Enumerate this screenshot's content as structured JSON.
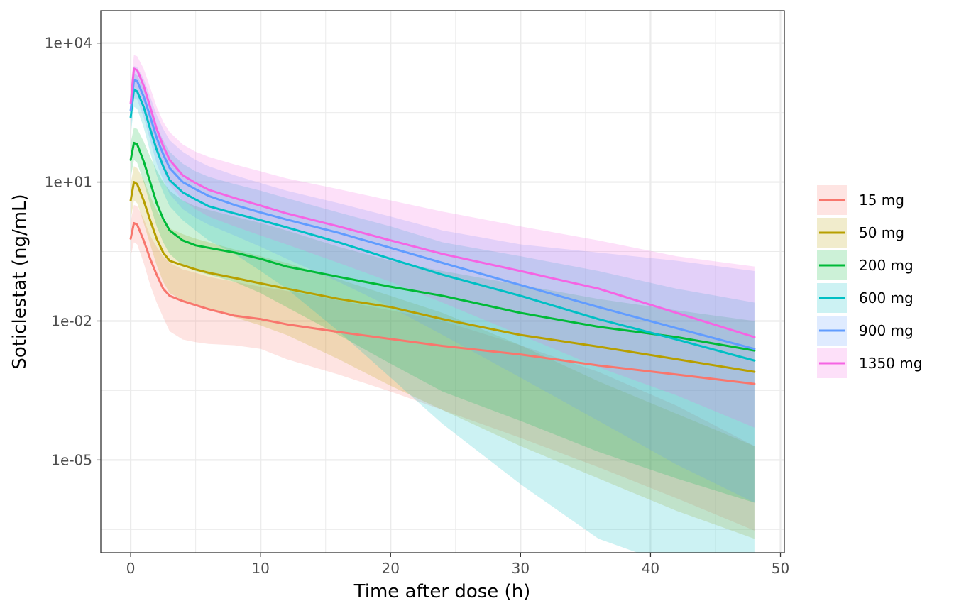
{
  "chart_data": {
    "type": "line",
    "xlabel": "Time after dose (h)",
    "ylabel": "Soticlestat (ng/mL)",
    "x_scale": "linear",
    "y_scale": "log10",
    "xlim": [
      -2.3,
      50.3
    ],
    "ylim": [
      1e-07,
      50000
    ],
    "x_ticks": [
      0,
      10,
      20,
      30,
      40,
      50
    ],
    "x_tick_labels": [
      "0",
      "10",
      "20",
      "30",
      "40",
      "50"
    ],
    "y_ticks": [
      1e-05,
      0.01,
      10,
      10000
    ],
    "y_tick_labels": [
      "1e-05",
      "1e-02",
      "1e+01",
      "1e+04"
    ],
    "grid": true,
    "legend_position": "right",
    "x": [
      0,
      0.25,
      0.5,
      1,
      1.5,
      2,
      2.5,
      3,
      4,
      5,
      6,
      8,
      10,
      12,
      16,
      20,
      24,
      30,
      36,
      42,
      48
    ],
    "series": [
      {
        "name": "15 mg",
        "color": "#F8766D",
        "median": [
          0.6,
          1.3,
          1.2,
          0.55,
          0.22,
          0.1,
          0.05,
          0.035,
          0.027,
          0.022,
          0.018,
          0.013,
          0.011,
          0.0085,
          0.0058,
          0.0041,
          0.0029,
          0.0019,
          0.0011,
          0.0007,
          0.00044
        ],
        "lower": [
          0.25,
          0.5,
          0.45,
          0.18,
          0.06,
          0.025,
          0.012,
          0.006,
          0.004,
          0.0035,
          0.0032,
          0.003,
          0.0025,
          0.0015,
          0.0007,
          0.0003,
          0.00012,
          3e-05,
          7e-06,
          1.5e-06,
          3e-07
        ],
        "upper": [
          1.4,
          3.2,
          3.0,
          1.6,
          0.7,
          0.4,
          0.25,
          0.18,
          0.13,
          0.11,
          0.09,
          0.07,
          0.055,
          0.045,
          0.028,
          0.017,
          0.01,
          0.003,
          0.0008,
          0.00015,
          2e-05
        ]
      },
      {
        "name": "50 mg",
        "color": "#B79F00",
        "median": [
          4,
          10,
          9,
          4,
          1.5,
          0.6,
          0.3,
          0.2,
          0.16,
          0.13,
          0.11,
          0.085,
          0.065,
          0.05,
          0.03,
          0.02,
          0.011,
          0.005,
          0.0028,
          0.0015,
          0.0008
        ],
        "lower": [
          1.5,
          4,
          3.5,
          1.3,
          0.45,
          0.16,
          0.07,
          0.04,
          0.028,
          0.022,
          0.018,
          0.012,
          0.008,
          0.005,
          0.0015,
          0.0004,
          0.00012,
          2e-05,
          4e-06,
          8e-07,
          2e-07
        ],
        "upper": [
          9,
          22,
          20,
          11,
          5,
          2.5,
          1.4,
          1.0,
          0.75,
          0.6,
          0.5,
          0.35,
          0.25,
          0.18,
          0.08,
          0.035,
          0.015,
          0.003,
          0.0005,
          0.0001,
          2e-05
        ]
      },
      {
        "name": "200 mg",
        "color": "#00BA38",
        "median": [
          30,
          70,
          65,
          28,
          10,
          3.5,
          1.6,
          0.9,
          0.55,
          0.43,
          0.38,
          0.3,
          0.22,
          0.15,
          0.09,
          0.055,
          0.035,
          0.015,
          0.0075,
          0.0045,
          0.0023
        ],
        "lower": [
          12,
          30,
          26,
          10,
          3.2,
          1.1,
          0.5,
          0.28,
          0.16,
          0.12,
          0.1,
          0.07,
          0.04,
          0.02,
          0.005,
          0.0012,
          0.0003,
          7e-05,
          1.5e-05,
          4e-06,
          1.2e-06
        ],
        "upper": [
          70,
          150,
          140,
          75,
          35,
          18,
          10,
          6.5,
          4,
          3,
          2.5,
          1.8,
          1.3,
          0.9,
          0.4,
          0.2,
          0.12,
          0.06,
          0.03,
          0.017,
          0.01
        ]
      },
      {
        "name": "600 mg",
        "color": "#00BFC4",
        "median": [
          250,
          1000,
          900,
          420,
          140,
          50,
          22,
          11,
          6,
          4.2,
          3,
          2.1,
          1.5,
          1.05,
          0.5,
          0.22,
          0.1,
          0.035,
          0.011,
          0.004,
          0.0014
        ],
        "lower": [
          100,
          420,
          380,
          150,
          45,
          14,
          6,
          3,
          1.5,
          0.9,
          0.55,
          0.28,
          0.12,
          0.05,
          0.006,
          0.0006,
          6e-05,
          3e-06,
          2e-07,
          1e-08,
          1e-07
        ],
        "upper": [
          600,
          2200,
          2000,
          1050,
          400,
          160,
          80,
          45,
          25,
          17,
          13,
          9,
          6.5,
          4.5,
          2.2,
          1.1,
          0.5,
          0.25,
          0.12,
          0.05,
          0.025
        ]
      },
      {
        "name": "900 mg",
        "color": "#619CFF",
        "median": [
          350,
          1600,
          1500,
          700,
          260,
          90,
          40,
          20,
          10,
          7,
          5,
          3.2,
          2.2,
          1.55,
          0.8,
          0.38,
          0.18,
          0.06,
          0.02,
          0.007,
          0.0025
        ],
        "lower": [
          140,
          650,
          600,
          250,
          80,
          25,
          11,
          5.5,
          2.6,
          1.7,
          1.2,
          0.7,
          0.4,
          0.22,
          0.07,
          0.02,
          0.005,
          0.0006,
          7e-05,
          8e-06,
          1.2e-06
        ],
        "upper": [
          800,
          3200,
          3000,
          1700,
          700,
          280,
          140,
          80,
          45,
          30,
          22,
          14,
          9.5,
          6.5,
          3.5,
          1.8,
          0.9,
          0.45,
          0.3,
          0.2,
          0.12
        ]
      },
      {
        "name": "1350 mg",
        "color": "#F564E3",
        "median": [
          500,
          2800,
          2600,
          1200,
          420,
          140,
          60,
          30,
          14,
          9.5,
          6.8,
          4.5,
          3.1,
          2.1,
          1.1,
          0.55,
          0.28,
          0.12,
          0.05,
          0.015,
          0.0045
        ],
        "lower": [
          200,
          1100,
          1000,
          420,
          140,
          45,
          18,
          9,
          4,
          2.6,
          1.8,
          1.1,
          0.7,
          0.45,
          0.18,
          0.07,
          0.025,
          0.005,
          0.001,
          0.00025,
          5e-05
        ],
        "upper": [
          1200,
          5500,
          5200,
          2800,
          1100,
          420,
          200,
          120,
          65,
          45,
          35,
          24,
          17,
          12,
          7,
          4,
          2.3,
          1.1,
          0.55,
          0.25,
          0.15
        ]
      }
    ]
  }
}
